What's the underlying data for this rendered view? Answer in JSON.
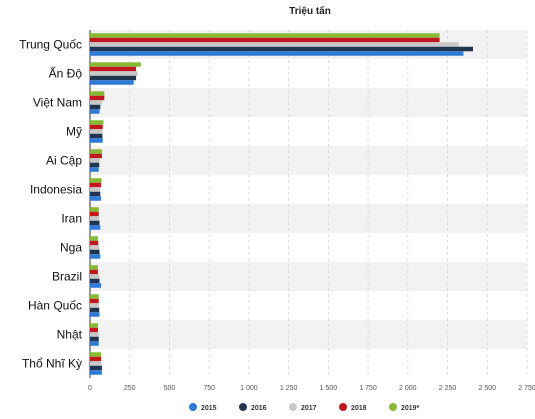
{
  "chart_data": {
    "type": "bar",
    "orientation": "horizontal",
    "title": "Triệu tấn",
    "categories": [
      "Trung Quốc",
      "Ấn Độ",
      "Việt Nam",
      "Mỹ",
      "Ai Cập",
      "Indonesia",
      "Iran",
      "Nga",
      "Brazil",
      "Hàn Quốc",
      "Nhật",
      "Thổ Nhĩ Kỳ"
    ],
    "series": [
      {
        "name": "2015",
        "color": "#2e7bd6",
        "values": [
          2350,
          275,
          60,
          80,
          55,
          70,
          65,
          65,
          70,
          60,
          55,
          75
        ]
      },
      {
        "name": "2016",
        "color": "#1f3550",
        "values": [
          2410,
          290,
          65,
          78,
          58,
          65,
          60,
          60,
          60,
          58,
          55,
          75
        ]
      },
      {
        "name": "2017",
        "color": "#c8c8c8",
        "values": [
          2320,
          300,
          75,
          80,
          60,
          65,
          58,
          58,
          58,
          55,
          55,
          72
        ]
      },
      {
        "name": "2018",
        "color": "#c0181e",
        "values": [
          2200,
          290,
          90,
          80,
          75,
          70,
          55,
          52,
          50,
          55,
          50,
          70
        ]
      },
      {
        "name": "2019*",
        "color": "#86b934",
        "values": [
          2200,
          320,
          90,
          85,
          75,
          72,
          55,
          50,
          50,
          55,
          50,
          70
        ]
      }
    ],
    "xticks": [
      "0",
      "250",
      "500",
      "750",
      "1 000",
      "1 250",
      "1 500",
      "1 750",
      "2 000",
      "2 250",
      "2 500",
      "2 750"
    ],
    "xlim": [
      0,
      2750
    ],
    "grid": true,
    "legend": "bottom-center"
  }
}
